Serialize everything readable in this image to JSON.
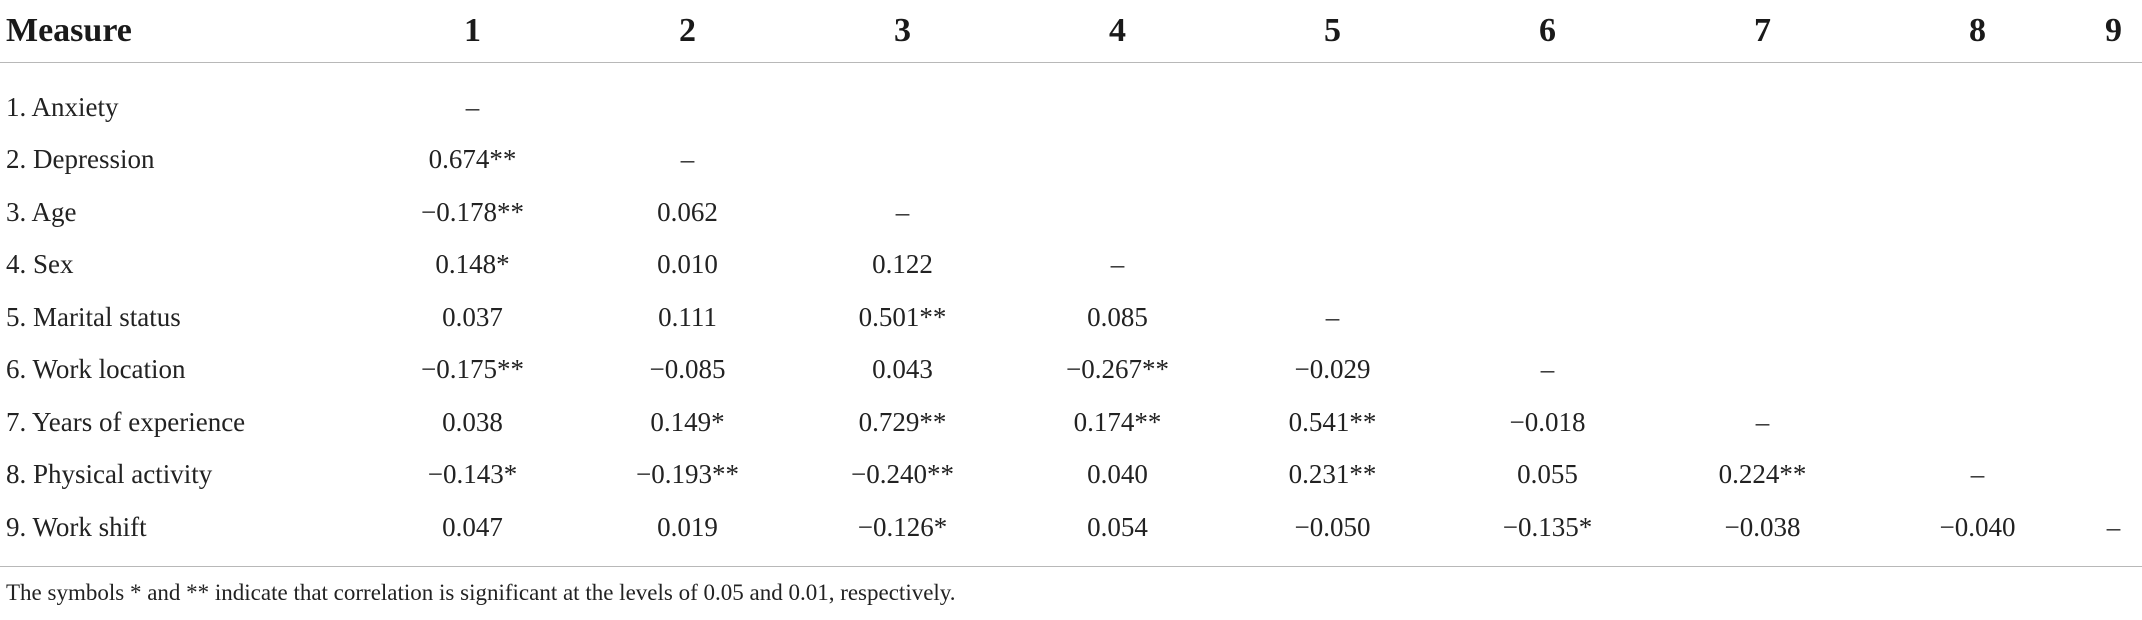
{
  "table": {
    "headers": [
      "Measure",
      "1",
      "2",
      "3",
      "4",
      "5",
      "6",
      "7",
      "8",
      "9"
    ],
    "rows": [
      {
        "label": "1. Anxiety",
        "cells": [
          "–",
          "",
          "",
          "",
          "",
          "",
          "",
          "",
          ""
        ]
      },
      {
        "label": "2. Depression",
        "cells": [
          "0.674**",
          "–",
          "",
          "",
          "",
          "",
          "",
          "",
          ""
        ]
      },
      {
        "label": "3. Age",
        "cells": [
          "−0.178**",
          "0.062",
          "–",
          "",
          "",
          "",
          "",
          "",
          ""
        ]
      },
      {
        "label": "4. Sex",
        "cells": [
          "0.148*",
          "0.010",
          "0.122",
          "–",
          "",
          "",
          "",
          "",
          ""
        ]
      },
      {
        "label": "5. Marital status",
        "cells": [
          "0.037",
          "0.111",
          "0.501**",
          "0.085",
          "–",
          "",
          "",
          "",
          ""
        ]
      },
      {
        "label": "6. Work location",
        "cells": [
          "−0.175**",
          "−0.085",
          "0.043",
          "−0.267**",
          "−0.029",
          "–",
          "",
          "",
          ""
        ]
      },
      {
        "label": "7. Years of experience",
        "cells": [
          "0.038",
          "0.149*",
          "0.729**",
          "0.174**",
          "0.541**",
          "−0.018",
          "–",
          "",
          ""
        ]
      },
      {
        "label": "8. Physical activity",
        "cells": [
          "−0.143*",
          "−0.193**",
          "−0.240**",
          "0.040",
          "0.231**",
          "0.055",
          "0.224**",
          "–",
          ""
        ]
      },
      {
        "label": "9. Work shift",
        "cells": [
          "0.047",
          "0.019",
          "−0.126*",
          "0.054",
          "−0.050",
          "−0.135*",
          "−0.038",
          "−0.040",
          "–"
        ]
      }
    ]
  },
  "footnote": "The symbols * and ** indicate that correlation is significant at the levels of 0.05 and 0.01, respectively."
}
